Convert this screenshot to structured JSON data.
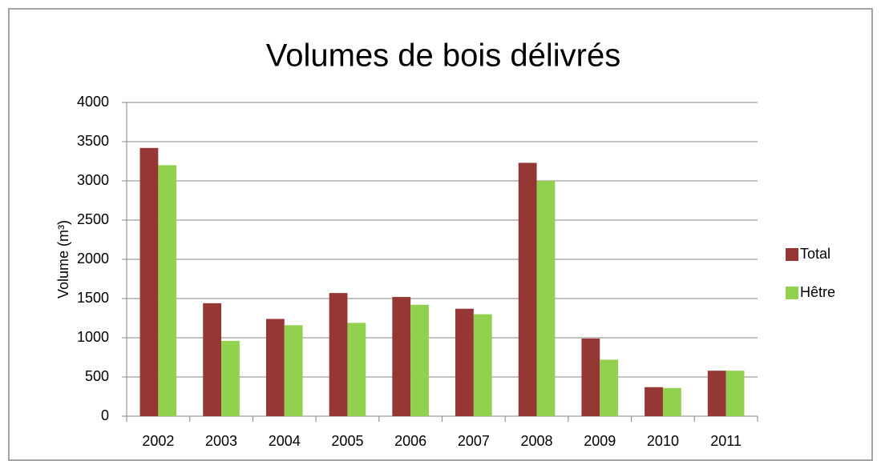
{
  "chart_data": {
    "type": "bar",
    "title": "Volumes de bois délivrés",
    "y_label": "Volume (m³)",
    "categories": [
      "2002",
      "2003",
      "2004",
      "2005",
      "2006",
      "2007",
      "2008",
      "2009",
      "2010",
      "2011"
    ],
    "series": [
      {
        "name": "Total",
        "color": "#953735",
        "values": [
          3420,
          1440,
          1240,
          1570,
          1520,
          1370,
          3230,
          990,
          370,
          580
        ]
      },
      {
        "name": "Hêtre",
        "color": "#92d050",
        "values": [
          3200,
          960,
          1160,
          1190,
          1420,
          1300,
          3000,
          720,
          360,
          580
        ]
      }
    ],
    "ylim": [
      0,
      4000
    ],
    "yticks": [
      0,
      500,
      1000,
      1500,
      2000,
      2500,
      3000,
      3500,
      4000
    ],
    "grid": true,
    "legend": "right"
  }
}
